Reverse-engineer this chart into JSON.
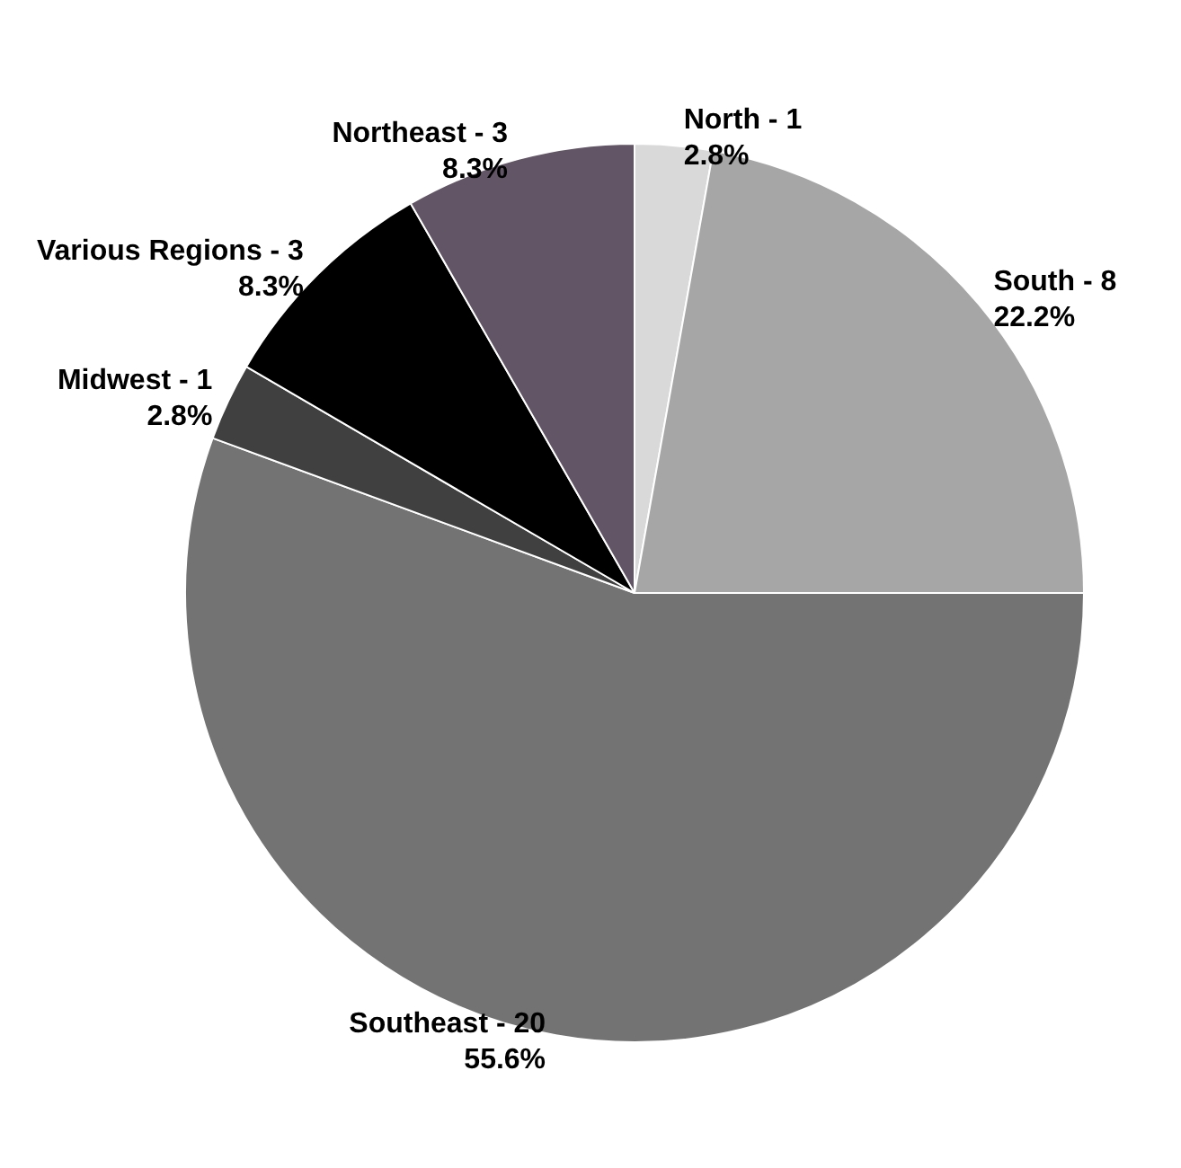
{
  "chart_data": {
    "type": "pie",
    "categories": [
      "North - 1",
      "South - 8",
      "Southeast - 20",
      "Midwest - 1",
      "Various Regions - 3",
      "Northeast - 3"
    ],
    "values": [
      2.8,
      22.2,
      55.6,
      2.8,
      8.3,
      8.3
    ],
    "value_labels": [
      "2.8%",
      "22.2%",
      "55.6%",
      "2.8%",
      "8.3%",
      "8.3%"
    ],
    "colors": [
      "#d9d9d9",
      "#a6a6a6",
      "#737373",
      "#404040",
      "#000000",
      "#625566"
    ],
    "legend": false
  }
}
